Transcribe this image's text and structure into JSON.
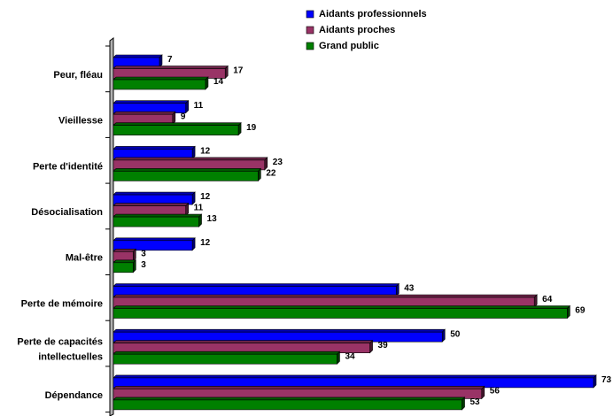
{
  "chart_data": {
    "type": "bar",
    "orientation": "horizontal",
    "categories": [
      "Peur, fléau",
      "Vieillesse",
      "Perte d'identité",
      "Désocialisation",
      "Mal-être",
      "Perte de mémoire",
      "Perte de capacités intellectuelles",
      "Dépendance"
    ],
    "category_lines": [
      [
        "Peur, fléau"
      ],
      [
        "Vieillesse"
      ],
      [
        "Perte d'identité"
      ],
      [
        "Désocialisation"
      ],
      [
        "Mal-être"
      ],
      [
        "Perte de mémoire"
      ],
      [
        "Perte de capacités",
        "intellectuelles"
      ],
      [
        "Dépendance"
      ]
    ],
    "series": [
      {
        "name": "Aidants professionnels",
        "color": "#0000ff",
        "values": [
          7,
          11,
          12,
          12,
          12,
          43,
          50,
          73
        ]
      },
      {
        "name": "Aidants proches",
        "color": "#993366",
        "values": [
          17,
          9,
          23,
          11,
          3,
          64,
          39,
          56
        ]
      },
      {
        "name": "Grand public",
        "color": "#008000",
        "values": [
          14,
          19,
          22,
          13,
          3,
          69,
          34,
          53
        ]
      }
    ],
    "xlim": [
      0,
      73
    ],
    "grid": false,
    "legend_position": "top-right",
    "data_labels": true,
    "style_3d": true
  }
}
